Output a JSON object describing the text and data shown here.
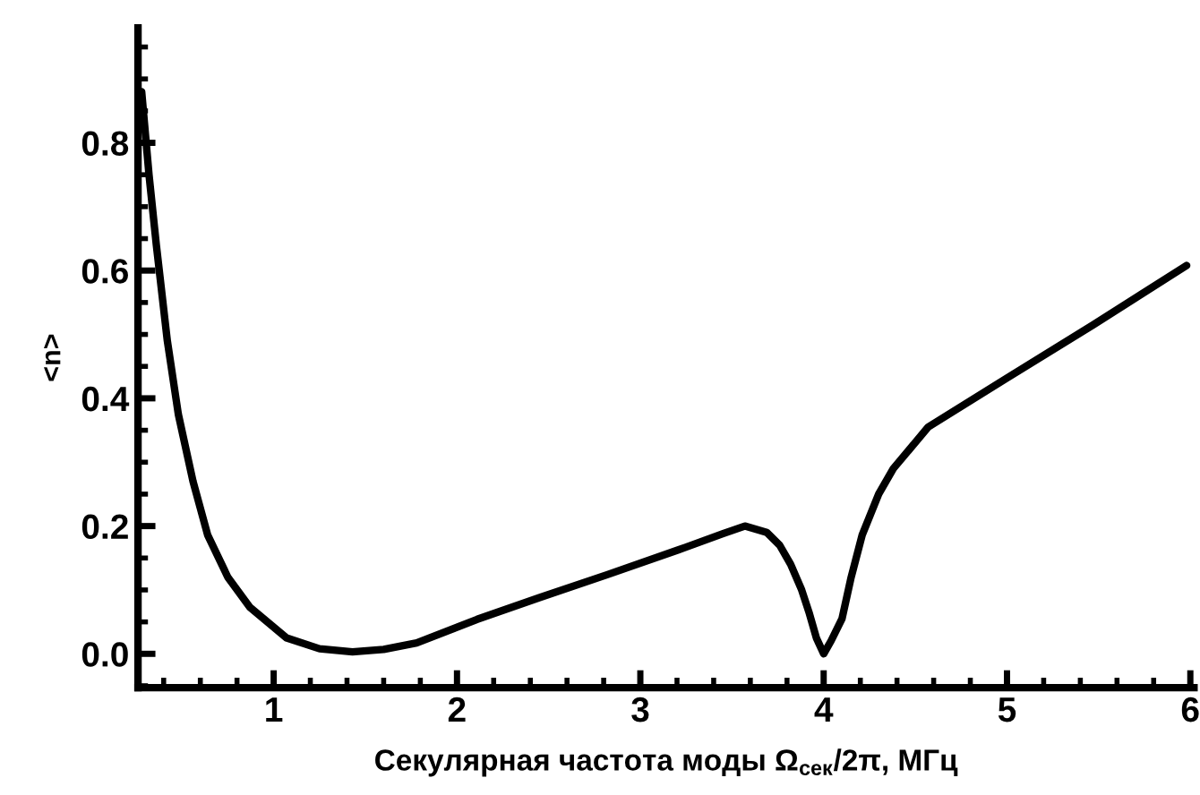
{
  "chart_data": {
    "type": "line",
    "xlabel": "Секулярная частота моды Ω$_{сек}$/2π, МГц",
    "ylabel": "<n>",
    "xlim": [
      0.26,
      6.02
    ],
    "ylim": [
      -0.053,
      0.98
    ],
    "xticks": [
      1,
      2,
      3,
      4,
      5,
      6
    ],
    "yticks": [
      {
        "value": 0.0,
        "label": "0.0"
      },
      {
        "value": 0.2,
        "label": "0.2"
      },
      {
        "value": 0.4,
        "label": "0.4"
      },
      {
        "value": 0.6,
        "label": "0.6"
      },
      {
        "value": 0.8,
        "label": "0.8"
      }
    ],
    "grid": false,
    "legend": false,
    "marker": "none",
    "line_style": "solid",
    "series": [
      {
        "color": "#000000",
        "x": [
          0.28,
          0.32,
          0.36,
          0.42,
          0.48,
          0.56,
          0.64,
          0.75,
          0.87,
          1.07,
          1.25,
          1.43,
          1.6,
          1.78,
          2.11,
          2.45,
          2.82,
          3.21,
          3.45,
          3.57,
          3.69,
          3.76,
          3.82,
          3.88,
          3.92,
          3.96,
          4.0,
          4.04,
          4.1,
          4.15,
          4.21,
          4.3,
          4.38,
          4.57,
          4.99,
          5.47,
          5.98
        ],
        "values": [
          0.88,
          0.75,
          0.64,
          0.49,
          0.375,
          0.27,
          0.186,
          0.12,
          0.073,
          0.025,
          0.008,
          0.003,
          0.007,
          0.017,
          0.054,
          0.088,
          0.124,
          0.163,
          0.188,
          0.2,
          0.19,
          0.17,
          0.14,
          0.1,
          0.065,
          0.025,
          0.0,
          0.02,
          0.055,
          0.12,
          0.186,
          0.25,
          0.29,
          0.355,
          0.43,
          0.515,
          0.608
        ]
      }
    ]
  }
}
